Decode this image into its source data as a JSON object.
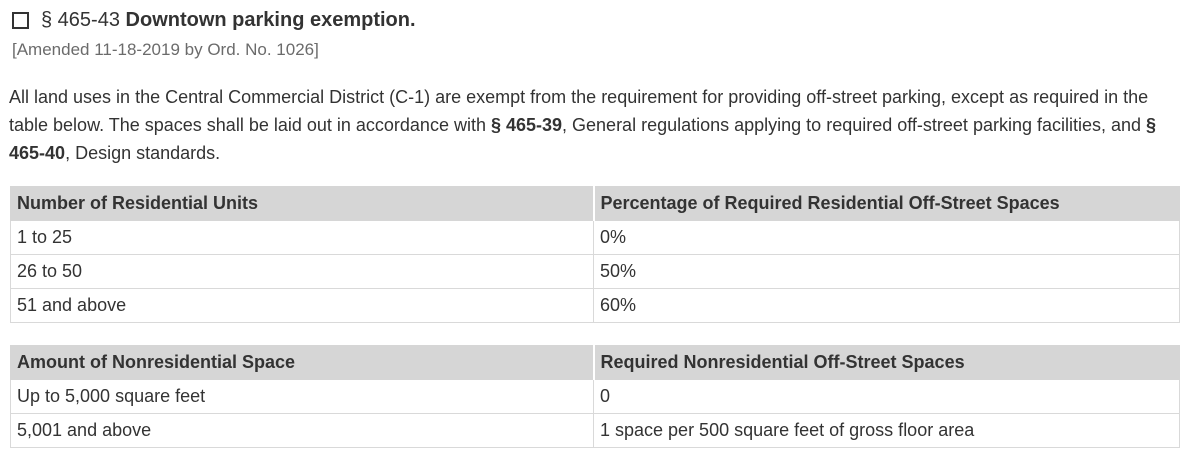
{
  "section": {
    "number": "§ 465-43",
    "title": "Downtown parking exemption.",
    "history": "[Amended 11-18-2019 by Ord. No. 1026]"
  },
  "body": {
    "part1": "All land uses in the Central Commercial District (C-1) are exempt from the requirement for providing off-street parking, except as required in the table below. The spaces shall be laid out in accordance with ",
    "link1": "§ 465-39",
    "part2": ", General regulations applying to required off-street parking facilities, and ",
    "link2": "§ 465-40",
    "part3": ", Design standards."
  },
  "residential_table": {
    "headers": [
      "Number of Residential Units",
      "Percentage of Required Residential Off-Street Spaces"
    ],
    "rows": [
      [
        "1 to 25",
        "0%"
      ],
      [
        "26 to 50",
        "50%"
      ],
      [
        "51 and above",
        "60%"
      ]
    ]
  },
  "nonresidential_table": {
    "headers": [
      "Amount of Nonresidential Space",
      "Required Nonresidential Off-Street Spaces"
    ],
    "rows": [
      [
        "Up to 5,000 square feet",
        "0"
      ],
      [
        "5,001 and above",
        "1 space per 500 square feet of gross floor area"
      ]
    ]
  }
}
